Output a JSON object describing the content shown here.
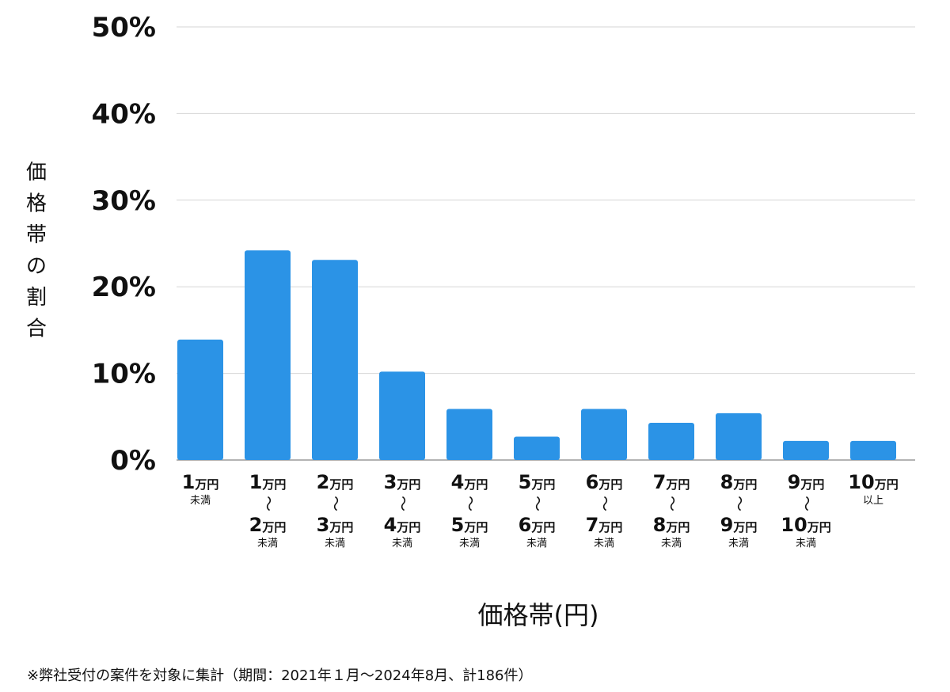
{
  "chart_data": {
    "type": "bar",
    "xlabel": "価格帯(円)",
    "ylabel": "価格帯の割合",
    "ylim": [
      0,
      50
    ],
    "yticks": [
      "0%",
      "10%",
      "20%",
      "30%",
      "40%",
      "50%"
    ],
    "grid": true,
    "bar_color": "#2b93e6",
    "categories": [
      "1万円 未満",
      "1万円 〜 2万円 未満",
      "2万円 〜 3万円 未満",
      "3万円 〜 4万円 未満",
      "4万円 〜 5万円 未満",
      "5万円 〜 6万円 未満",
      "6万円 〜 7万円 未満",
      "7万円 〜 8万円 未満",
      "8万円 〜 9万円 未満",
      "9万円 〜 10万円 未満",
      "10万円 以上"
    ],
    "values": [
      13.9,
      24.2,
      23.1,
      10.2,
      5.9,
      2.7,
      5.9,
      4.3,
      5.4,
      2.2,
      2.2
    ],
    "tick_labels": [
      {
        "n1": "1",
        "u1": "万円",
        "sep": "",
        "n2": "",
        "u2": "",
        "suffix": "未満"
      },
      {
        "n1": "1",
        "u1": "万円",
        "sep": "〜",
        "n2": "2",
        "u2": "万円",
        "suffix": "未満"
      },
      {
        "n1": "2",
        "u1": "万円",
        "sep": "〜",
        "n2": "3",
        "u2": "万円",
        "suffix": "未満"
      },
      {
        "n1": "3",
        "u1": "万円",
        "sep": "〜",
        "n2": "4",
        "u2": "万円",
        "suffix": "未満"
      },
      {
        "n1": "4",
        "u1": "万円",
        "sep": "〜",
        "n2": "5",
        "u2": "万円",
        "suffix": "未満"
      },
      {
        "n1": "5",
        "u1": "万円",
        "sep": "〜",
        "n2": "6",
        "u2": "万円",
        "suffix": "未満"
      },
      {
        "n1": "6",
        "u1": "万円",
        "sep": "〜",
        "n2": "7",
        "u2": "万円",
        "suffix": "未満"
      },
      {
        "n1": "7",
        "u1": "万円",
        "sep": "〜",
        "n2": "8",
        "u2": "万円",
        "suffix": "未満"
      },
      {
        "n1": "8",
        "u1": "万円",
        "sep": "〜",
        "n2": "9",
        "u2": "万円",
        "suffix": "未満"
      },
      {
        "n1": "9",
        "u1": "万円",
        "sep": "〜",
        "n2": "10",
        "u2": "万円",
        "suffix": "未満"
      },
      {
        "n1": "10",
        "u1": "万円",
        "sep": "",
        "n2": "",
        "u2": "",
        "suffix": "以上"
      }
    ]
  },
  "footnote": "※弊社受付の案件を対象に集計（期間：2021年１月〜2024年8月、計186件）"
}
